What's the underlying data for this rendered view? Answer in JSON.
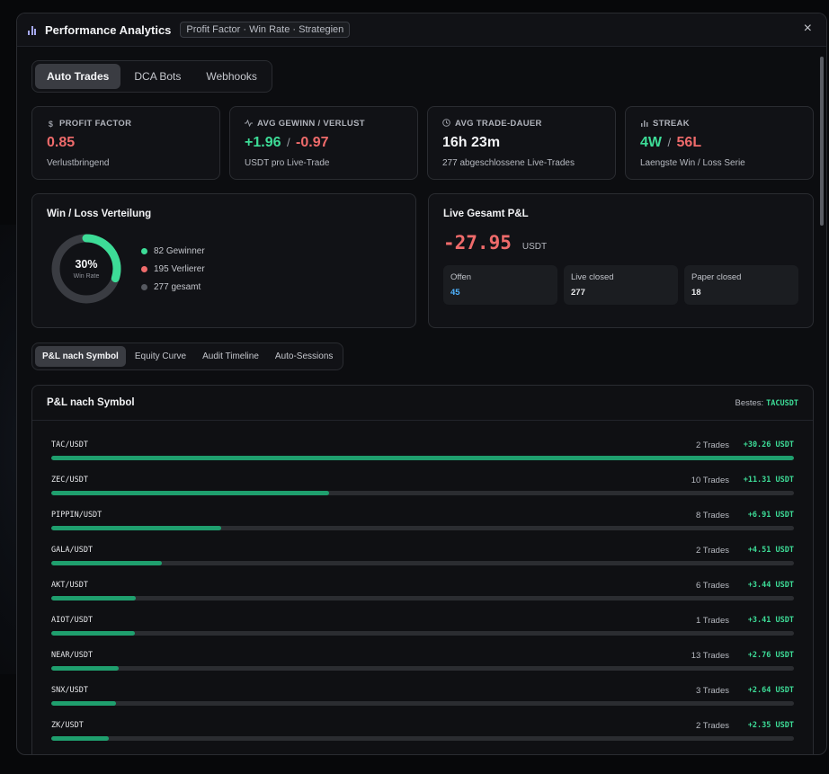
{
  "header": {
    "title": "Performance Analytics",
    "subtitle": "Profit Factor · Win Rate · Strategien",
    "close": "×"
  },
  "tabs": [
    {
      "label": "Auto Trades",
      "active": true
    },
    {
      "label": "DCA Bots",
      "active": false
    },
    {
      "label": "Webhooks",
      "active": false
    }
  ],
  "stats": {
    "profit_factor": {
      "icon": "dollar-icon",
      "label": "PROFIT FACTOR",
      "value": "0.85",
      "note": "Verlustbringend"
    },
    "avg_win_loss": {
      "icon": "activity-icon",
      "label": "AVG GEWINN / VERLUST",
      "win": "+1.96",
      "sep": "/",
      "loss": "-0.97",
      "note": "USDT pro Live-Trade"
    },
    "avg_duration": {
      "icon": "clock-icon",
      "label": "AVG TRADE-DAUER",
      "value": "16h 23m",
      "note": "277 abgeschlossene Live-Trades"
    },
    "streak": {
      "icon": "bar-chart-icon",
      "label": "STREAK",
      "win": "4W",
      "sep": "/",
      "loss": "56L",
      "note": "Laengste Win / Loss Serie"
    }
  },
  "winloss": {
    "title": "Win / Loss Verteilung",
    "win_rate_pct": 30,
    "pct_label": "30%",
    "sub_label": "Win Rate",
    "legend": [
      {
        "label": "82 Gewinner",
        "color": "#3ddc97"
      },
      {
        "label": "195 Verlierer",
        "color": "#ef6b6b"
      },
      {
        "label": "277 gesamt",
        "color": "#55585f"
      }
    ]
  },
  "live_pnl": {
    "title": "Live Gesamt P&L",
    "value": "-27.95",
    "unit": "USDT",
    "cards": [
      {
        "label": "Offen",
        "value": "45"
      },
      {
        "label": "Live closed",
        "value": "277"
      },
      {
        "label": "Paper closed",
        "value": "18"
      }
    ]
  },
  "subtabs": [
    {
      "label": "P&L nach Symbol",
      "active": true
    },
    {
      "label": "Equity Curve",
      "active": false
    },
    {
      "label": "Audit Timeline",
      "active": false
    },
    {
      "label": "Auto-Sessions",
      "active": false
    }
  ],
  "symbol_panel": {
    "title": "P&L nach Symbol",
    "best_label": "Bestes:",
    "best_symbol": "TACUSDT",
    "rows": [
      {
        "symbol": "TAC/USDT",
        "trades": "2 Trades",
        "pnl": "+30.26 USDT",
        "value": 30.26
      },
      {
        "symbol": "ZEC/USDT",
        "trades": "10 Trades",
        "pnl": "+11.31 USDT",
        "value": 11.31
      },
      {
        "symbol": "PIPPIN/USDT",
        "trades": "8 Trades",
        "pnl": "+6.91 USDT",
        "value": 6.91
      },
      {
        "symbol": "GALA/USDT",
        "trades": "2 Trades",
        "pnl": "+4.51 USDT",
        "value": 4.51
      },
      {
        "symbol": "AKT/USDT",
        "trades": "6 Trades",
        "pnl": "+3.44 USDT",
        "value": 3.44
      },
      {
        "symbol": "AIOT/USDT",
        "trades": "1 Trades",
        "pnl": "+3.41 USDT",
        "value": 3.41
      },
      {
        "symbol": "NEAR/USDT",
        "trades": "13 Trades",
        "pnl": "+2.76 USDT",
        "value": 2.76
      },
      {
        "symbol": "SNX/USDT",
        "trades": "3 Trades",
        "pnl": "+2.64 USDT",
        "value": 2.64
      },
      {
        "symbol": "ZK/USDT",
        "trades": "2 Trades",
        "pnl": "+2.35 USDT",
        "value": 2.35
      }
    ]
  },
  "colors": {
    "win": "#3ddc97",
    "loss": "#ef6b6b",
    "bar_fill": "#1f9f6e",
    "accent_blue": "#4fb3ff"
  }
}
